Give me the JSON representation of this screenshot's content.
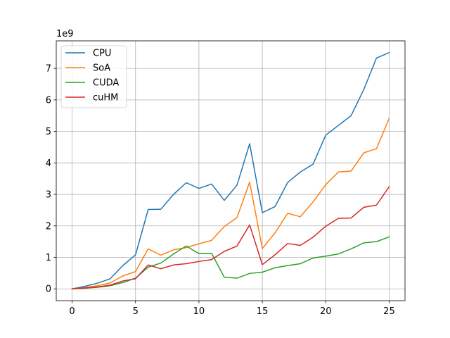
{
  "chart_data": {
    "type": "line",
    "title": "",
    "xlabel": "",
    "ylabel": "",
    "y_offset_label": "1e9",
    "xlim": [
      -1.25,
      26.25
    ],
    "ylim": [
      -0.375,
      7.875
    ],
    "x_ticks": [
      0,
      5,
      10,
      15,
      20,
      25
    ],
    "y_ticks": [
      0,
      1,
      2,
      3,
      4,
      5,
      6,
      7
    ],
    "grid": true,
    "legend_position": "top-left",
    "x": [
      0,
      1,
      2,
      3,
      4,
      5,
      6,
      7,
      8,
      9,
      10,
      11,
      12,
      13,
      14,
      15,
      16,
      17,
      18,
      19,
      20,
      21,
      22,
      23,
      24,
      25
    ],
    "series": [
      {
        "name": "CPU",
        "color": "#1f77b4",
        "values": [
          0.0,
          0.08,
          0.18,
          0.32,
          0.74,
          1.08,
          2.52,
          2.53,
          3.0,
          3.37,
          3.19,
          3.33,
          2.81,
          3.29,
          4.61,
          2.42,
          2.61,
          3.38,
          3.71,
          3.96,
          4.88,
          5.19,
          5.5,
          6.33,
          7.33,
          7.5
        ]
      },
      {
        "name": "SoA",
        "color": "#ff7f0e",
        "values": [
          0.0,
          0.04,
          0.1,
          0.19,
          0.41,
          0.55,
          1.27,
          1.07,
          1.24,
          1.31,
          1.43,
          1.54,
          1.98,
          2.26,
          3.39,
          1.28,
          1.78,
          2.4,
          2.29,
          2.76,
          3.31,
          3.71,
          3.74,
          4.32,
          4.45,
          5.41
        ]
      },
      {
        "name": "CUDA",
        "color": "#2ca02c",
        "values": [
          0.0,
          0.02,
          0.05,
          0.1,
          0.2,
          0.34,
          0.69,
          0.82,
          1.11,
          1.36,
          1.12,
          1.13,
          0.37,
          0.34,
          0.49,
          0.53,
          0.67,
          0.74,
          0.8,
          0.98,
          1.04,
          1.11,
          1.27,
          1.46,
          1.5,
          1.65
        ]
      },
      {
        "name": "cuHM",
        "color": "#d62728",
        "values": [
          0.0,
          0.03,
          0.06,
          0.12,
          0.25,
          0.32,
          0.76,
          0.64,
          0.76,
          0.8,
          0.87,
          0.93,
          1.19,
          1.36,
          2.03,
          0.77,
          1.08,
          1.44,
          1.38,
          1.64,
          1.99,
          2.24,
          2.25,
          2.59,
          2.66,
          3.24
        ]
      }
    ]
  }
}
